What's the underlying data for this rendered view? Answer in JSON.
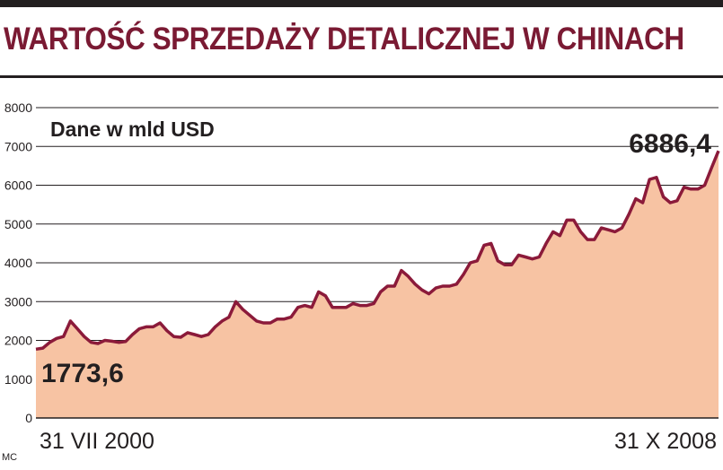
{
  "title": "WARTOŚĆ SPRZEDAŻY DETALICZNEJ W CHINACH",
  "credit": "MC",
  "colors": {
    "line": "#8b1a3a",
    "fill": "#f7c3a3",
    "title": "#7a1a33",
    "grid": "#231f20"
  },
  "chart_data": {
    "type": "area",
    "subtitle": "Dane w mld USD",
    "ylim": [
      0,
      8000
    ],
    "yticks": [
      0,
      1000,
      2000,
      3000,
      4000,
      5000,
      6000,
      7000,
      8000
    ],
    "x_start_label": "31 VII 2000",
    "x_end_label": "31 X 2008",
    "start_value_label": "1773,6",
    "end_value_label": "6886,4",
    "grid": "horizontal",
    "series": [
      {
        "values": [
          1773.6,
          1800,
          1950,
          2050,
          2100,
          2500,
          2300,
          2100,
          1950,
          1920,
          2000,
          1980,
          1950,
          1970,
          2150,
          2300,
          2350,
          2350,
          2450,
          2250,
          2100,
          2080,
          2200,
          2150,
          2100,
          2150,
          2350,
          2500,
          2600,
          3000,
          2800,
          2650,
          2500,
          2450,
          2450,
          2550,
          2550,
          2600,
          2850,
          2900,
          2850,
          3250,
          3150,
          2850,
          2850,
          2850,
          2950,
          2900,
          2900,
          2950,
          3250,
          3400,
          3400,
          3800,
          3650,
          3450,
          3300,
          3200,
          3350,
          3400,
          3400,
          3450,
          3700,
          4000,
          4050,
          4450,
          4500,
          4050,
          3950,
          3950,
          4200,
          4150,
          4100,
          4150,
          4500,
          4800,
          4700,
          5100,
          5100,
          4800,
          4600,
          4600,
          4900,
          4850,
          4800,
          4900,
          5250,
          5650,
          5550,
          6150,
          6200,
          5700,
          5550,
          5600,
          5950,
          5900,
          5900,
          6000,
          6450,
          6886.4
        ]
      }
    ]
  }
}
